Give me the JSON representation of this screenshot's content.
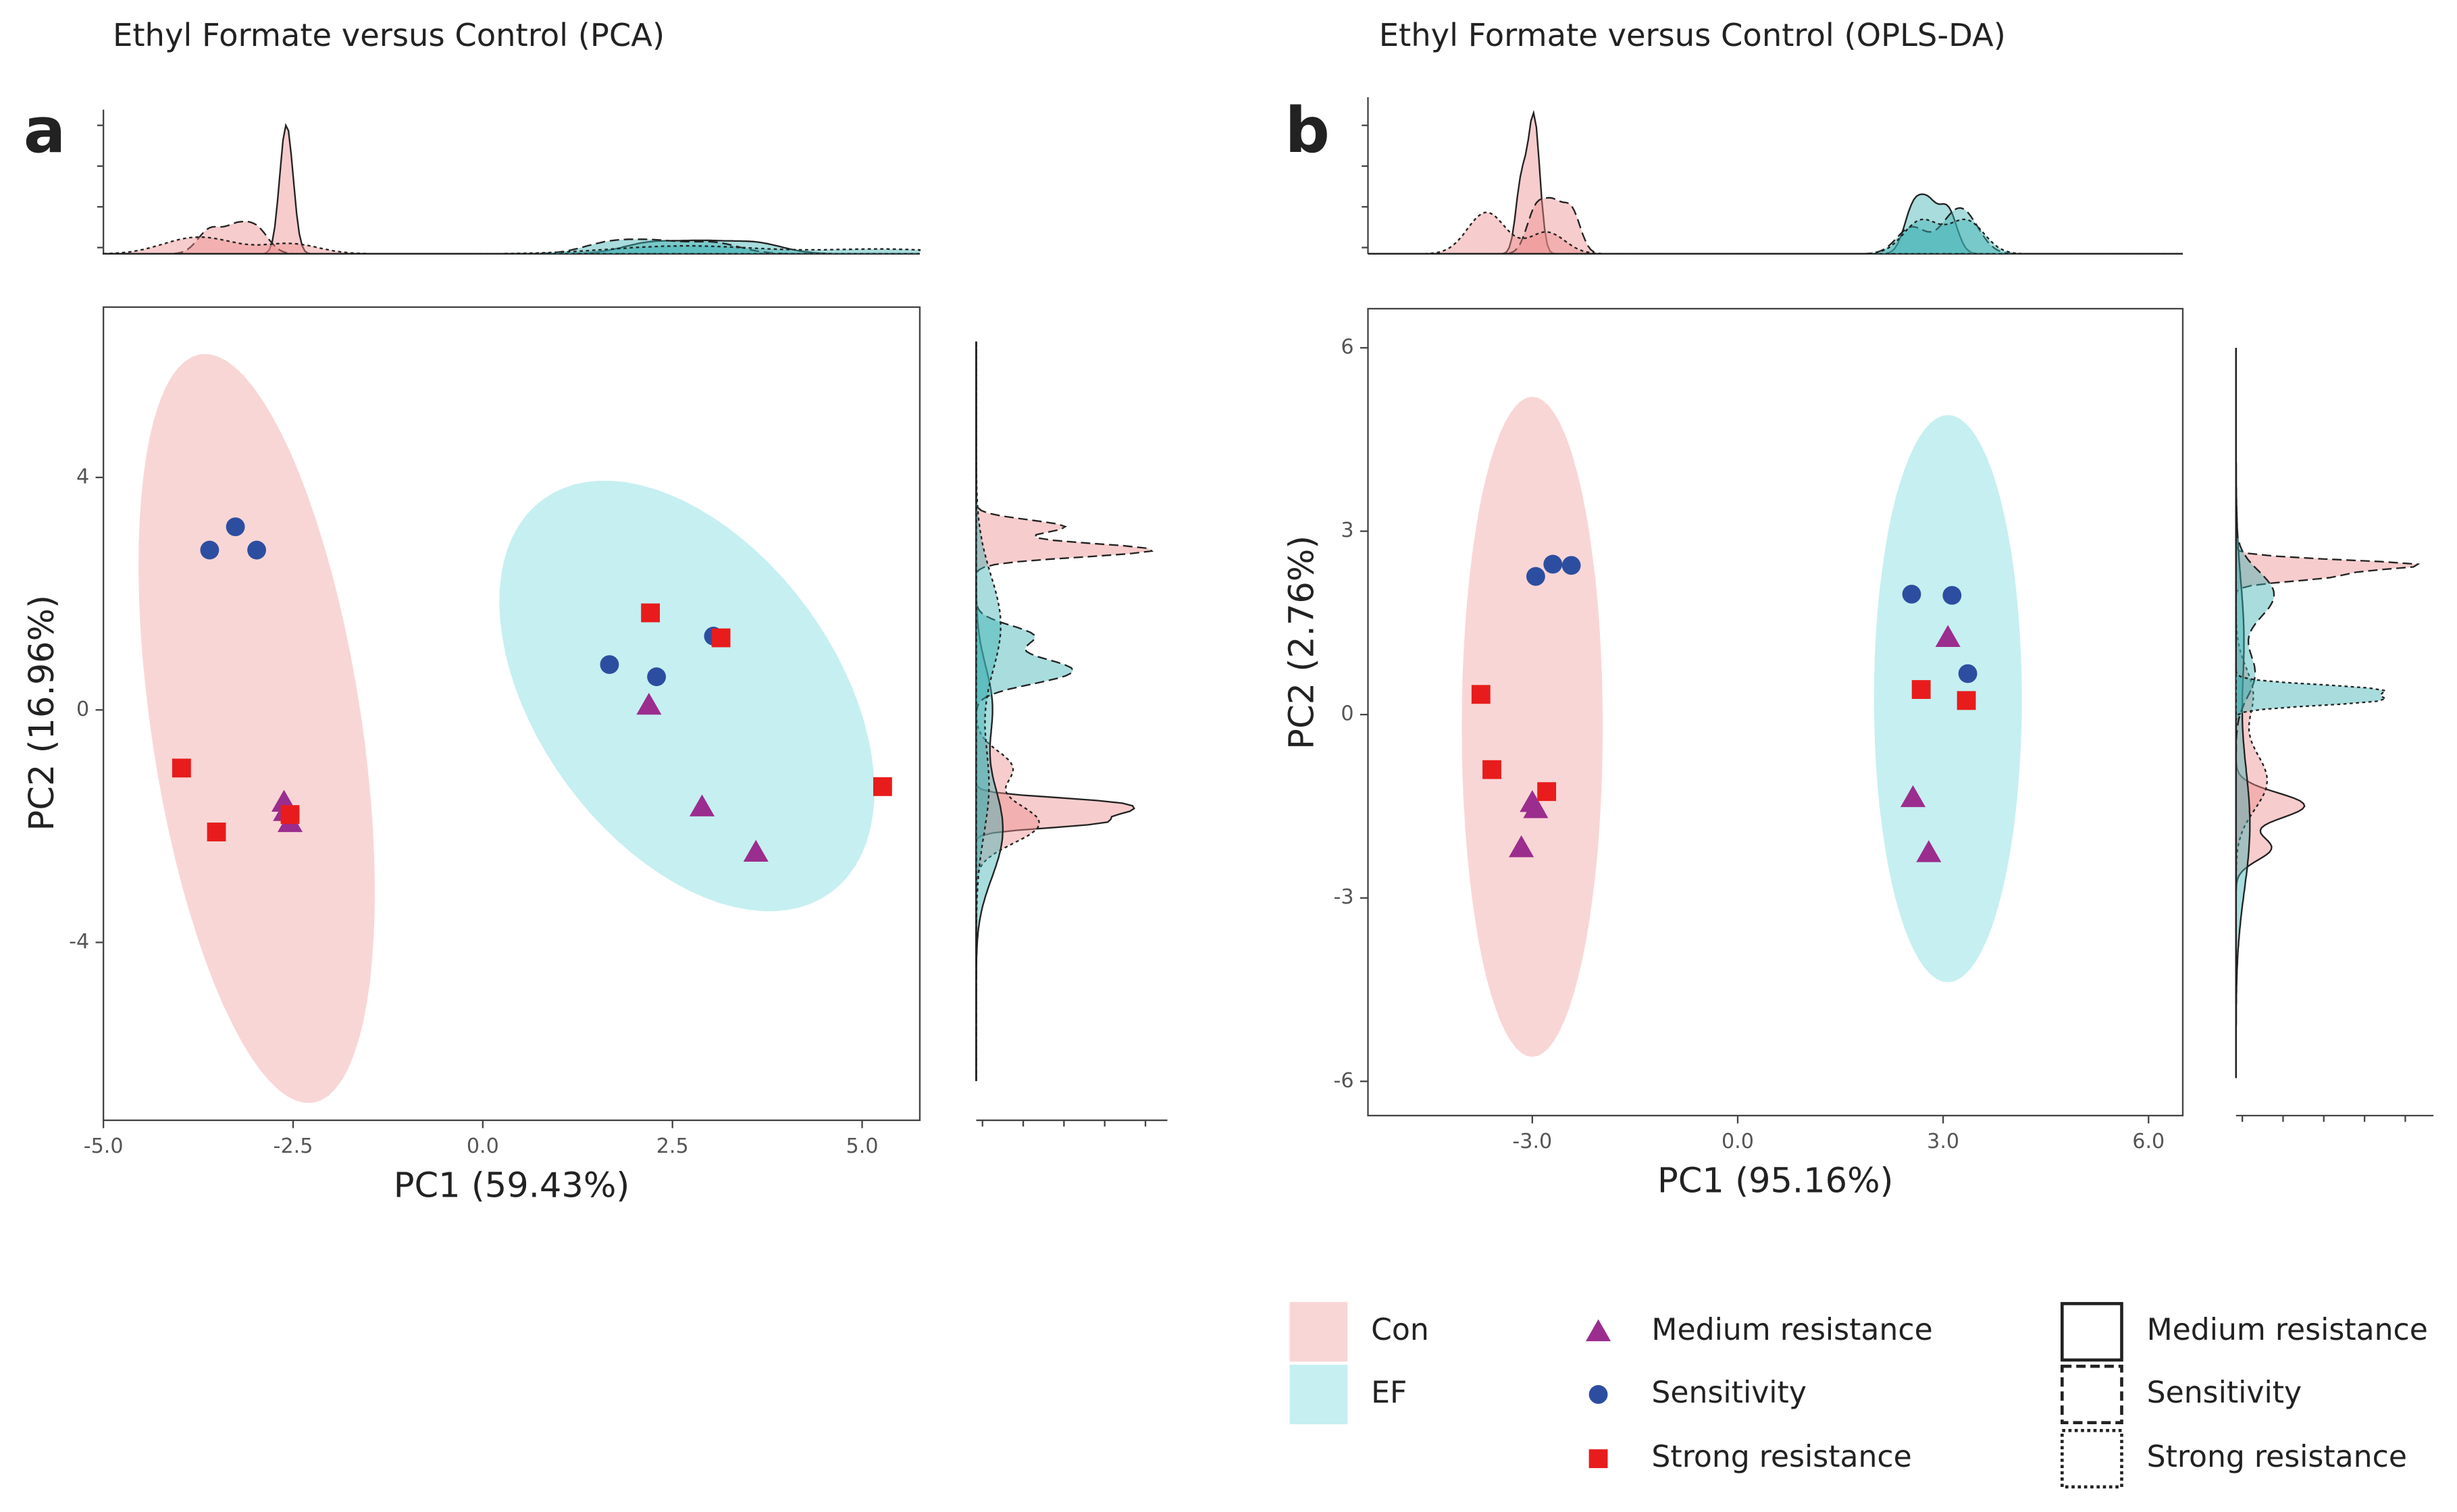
{
  "groups": [
    {
      "name": "Con",
      "color": "#f9d6d6",
      "density_color": "#ee8e8e"
    },
    {
      "name": "EF",
      "color": "#c6eff1",
      "density_color": "#3fb2b4"
    }
  ],
  "chart_data": [
    {
      "type": "scatter",
      "panel": "a",
      "title": "Ethyl Formate versus Control (PCA)",
      "xlabel": "PC1 (59.43%)",
      "ylabel": "PC2 (16.96%)",
      "xlim": [
        -5.0,
        5.76
      ],
      "ylim": [
        -7.06,
        6.93
      ],
      "xticks": [
        {
          "value": -5,
          "label": "-5.0"
        },
        {
          "value": -2.5,
          "label": "-2.5"
        },
        {
          "value": 0,
          "label": "0.0"
        },
        {
          "value": 2.5,
          "label": "2.5"
        },
        {
          "value": 5,
          "label": "5.0"
        }
      ],
      "yticks": [
        -4,
        0,
        4
      ],
      "ellipses": [
        {
          "name": "Con",
          "cx": -2.98,
          "cy": -0.32,
          "ux": -0.74,
          "uy": 6.44,
          "vx": 1.37,
          "vy": 0.27
        },
        {
          "name": "EF",
          "cx": 2.69,
          "cy": 0.24,
          "ux": -1.91,
          "uy": 3.37,
          "vx": 1.57,
          "vy": 1.54
        }
      ],
      "series": [
        {
          "name": "Medium resistance",
          "color": "#9b2d8e",
          "marker": "triangle",
          "dash": "solid",
          "x": [
            -2.62,
            -2.54,
            -2.6,
            2.19,
            2.89,
            3.6
          ],
          "values": [
            -1.59,
            -1.94,
            -1.75,
            0.08,
            -1.67,
            -2.45
          ],
          "group": [
            "Con",
            "Con",
            "Con",
            "EF",
            "EF",
            "EF"
          ]
        },
        {
          "name": "Sensitivity",
          "color": "#2d4ea0",
          "marker": "circle",
          "dash": "dashed",
          "x": [
            -3.6,
            -3.26,
            -2.98,
            1.67,
            2.29,
            3.04
          ],
          "values": [
            2.75,
            3.15,
            2.75,
            0.78,
            0.57,
            1.27
          ],
          "group": [
            "Con",
            "Con",
            "Con",
            "EF",
            "EF",
            "EF"
          ]
        },
        {
          "name": "Strong resistance",
          "color": "#e81c1c",
          "marker": "square",
          "dash": "dotted",
          "x": [
            -3.97,
            -3.51,
            -2.54,
            2.21,
            3.14,
            5.27
          ],
          "values": [
            -1.0,
            -2.1,
            -1.8,
            1.67,
            1.24,
            -1.32
          ],
          "group": [
            "Con",
            "Con",
            "Con",
            "EF",
            "EF",
            "EF"
          ]
        }
      ]
    },
    {
      "type": "scatter",
      "panel": "b",
      "title": "Ethyl Formate versus Control (OPLS-DA)",
      "xlabel": "PC1 (95.16%)",
      "ylabel": "PC2 (2.76%)",
      "xlim": [
        -5.4,
        6.5
      ],
      "ylim": [
        -6.56,
        6.64
      ],
      "xticks": [
        {
          "value": -3,
          "label": "-3.0"
        },
        {
          "value": 0,
          "label": "0.0"
        },
        {
          "value": 3,
          "label": "3.0"
        },
        {
          "value": 6,
          "label": "6.0"
        }
      ],
      "yticks": [
        -6,
        -3,
        0,
        3,
        6
      ],
      "ellipses": [
        {
          "name": "Con",
          "cx": -3.0,
          "cy": -0.2,
          "ux": 0,
          "uy": 5.4,
          "vx": 1.03,
          "vy": 0
        },
        {
          "name": "EF",
          "cx": 3.07,
          "cy": 0.26,
          "ux": 0,
          "uy": 4.64,
          "vx": 1.08,
          "vy": 0
        }
      ],
      "series": [
        {
          "name": "Medium resistance",
          "color": "#9b2d8e",
          "marker": "triangle",
          "dash": "solid",
          "x": [
            -2.95,
            -3.0,
            -3.16,
            3.07,
            2.56,
            2.79
          ],
          "values": [
            -1.54,
            -1.44,
            -2.18,
            1.26,
            -1.36,
            -2.26
          ],
          "group": [
            "Con",
            "Con",
            "Con",
            "EF",
            "EF",
            "EF"
          ]
        },
        {
          "name": "Sensitivity",
          "color": "#2d4ea0",
          "marker": "circle",
          "dash": "dashed",
          "x": [
            -2.95,
            -2.7,
            -2.43,
            2.54,
            3.13,
            3.36
          ],
          "values": [
            2.26,
            2.46,
            2.44,
            1.97,
            1.95,
            0.67
          ],
          "group": [
            "Con",
            "Con",
            "Con",
            "EF",
            "EF",
            "EF"
          ]
        },
        {
          "name": "Strong resistance",
          "color": "#e81c1c",
          "marker": "square",
          "dash": "dotted",
          "x": [
            -3.75,
            -3.59,
            -2.79,
            2.68,
            3.34
          ],
          "values": [
            0.33,
            -0.9,
            -1.26,
            0.41,
            0.23
          ],
          "group": [
            "Con",
            "Con",
            "Con",
            "EF",
            "EF"
          ]
        }
      ]
    }
  ]
}
